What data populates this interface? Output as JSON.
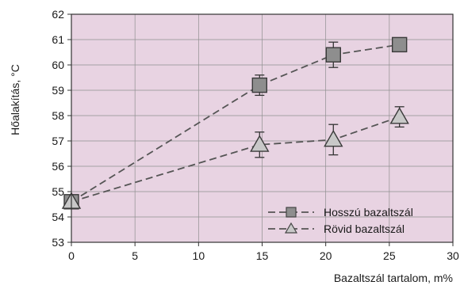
{
  "chart_data": {
    "type": "line",
    "xlabel": "Bazaltszál tartalom, m%",
    "ylabel": "Hőalakítás, °C",
    "xlim": [
      0,
      30
    ],
    "ylim": [
      53,
      62
    ],
    "xticks": [
      "0",
      "5",
      "10",
      "15",
      "20",
      "25",
      "30"
    ],
    "yticks": [
      "53",
      "54",
      "55",
      "56",
      "57",
      "58",
      "59",
      "60",
      "61",
      "62"
    ],
    "grid": true,
    "legend_position": "bottom-right",
    "background_color": "#e8d3e2",
    "series": [
      {
        "name": "Hosszú bazaltszál",
        "marker": "square",
        "line_style": "dashed",
        "color": "#555555",
        "marker_fill": "#8e8e8e",
        "points": [
          {
            "x": 0,
            "y": 54.6,
            "err": 0
          },
          {
            "x": 14.8,
            "y": 59.2,
            "err": 0.4
          },
          {
            "x": 20.6,
            "y": 60.4,
            "err": 0.5
          },
          {
            "x": 25.8,
            "y": 60.8,
            "err": 0.2
          }
        ]
      },
      {
        "name": "Rövid bazaltszál",
        "marker": "triangle",
        "line_style": "dashed",
        "color": "#555555",
        "marker_fill": "#c8c8c8",
        "points": [
          {
            "x": 0,
            "y": 54.6,
            "err": 0
          },
          {
            "x": 14.8,
            "y": 56.85,
            "err": 0.5
          },
          {
            "x": 20.6,
            "y": 57.05,
            "err": 0.6
          },
          {
            "x": 25.8,
            "y": 57.95,
            "err": 0.4
          }
        ]
      }
    ]
  }
}
